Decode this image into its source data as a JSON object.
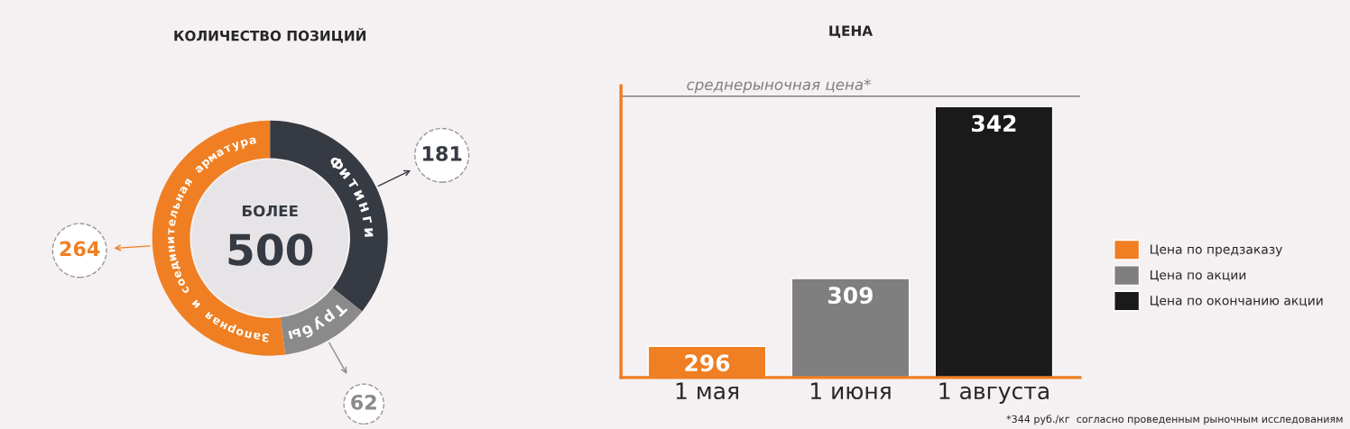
{
  "chart_data": [
    {
      "type": "donut",
      "title": "КОЛИЧЕСТВО ПОЗИЦИЙ",
      "categories": [
        "Фитинги",
        "Трубы",
        "Запорная и соединительная арматура"
      ],
      "values": [
        181,
        62,
        264
      ],
      "colors": [
        "#363a42",
        "#8a8a8a",
        "#ef7f22"
      ],
      "data_labels": true,
      "annotations": [
        "БОЛЕЕ",
        "500"
      ]
    },
    {
      "type": "bar",
      "title": "ЦЕНА",
      "categories": [
        "1 мая",
        "1 июня",
        "1 августа"
      ],
      "series": [
        {
          "name": "Цена по предзаказу",
          "color": "#ef7f22",
          "values": [
            296,
            null,
            null
          ]
        },
        {
          "name": "Цена по акции",
          "color": "#7f7f7f",
          "values": [
            null,
            309,
            null
          ]
        },
        {
          "name": "Цена по окончанию акции",
          "color": "#1a1a1a",
          "values": [
            null,
            null,
            342
          ]
        }
      ],
      "ylim": [
        290,
        346
      ],
      "tick_labels": "x",
      "data_labels": true,
      "legend": "right",
      "ref_lines": [
        {
          "axis": "y",
          "value": 344,
          "label": "среднерыночная цена*",
          "color": "#7f7f7f"
        }
      ],
      "annotations": [
        "*344 руб./кг  согласно проведенным рыночным исследованиям"
      ]
    }
  ]
}
